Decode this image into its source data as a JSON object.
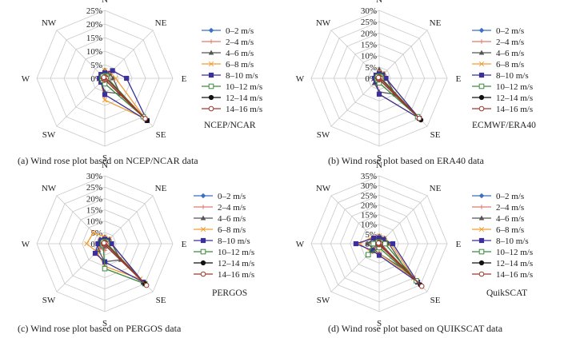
{
  "figure": {
    "legend_entries": [
      "0–2  m/s",
      "2–4  m/s",
      "4–6  m/s",
      "6–8  m/s",
      "8–10  m/s",
      "10–12  m/s",
      "12–14  m/s",
      "14–16  m/s"
    ],
    "directions": [
      "N",
      "NE",
      "E",
      "SE",
      "S",
      "SW",
      "W",
      "NW"
    ],
    "series_colors": [
      "#3a6fc4",
      "#e07a6a",
      "#555555",
      "#f39c32",
      "#3b2f9c",
      "#3d8a3d",
      "#111111",
      "#9b3b2e"
    ],
    "series_markers": [
      "diamond",
      "cross",
      "triangle",
      "x",
      "square",
      "square-open",
      "circle",
      "circle-open"
    ],
    "grid": true,
    "legend_position": "right"
  },
  "chart_data": [
    {
      "type": "radar",
      "panel_label": "NCEP/NCAR",
      "caption": "(a) Wind rose plot based on NCEP/NCAR data",
      "categories": [
        "N",
        "NE",
        "E",
        "SE",
        "S",
        "SW",
        "W",
        "NW"
      ],
      "rlim": [
        0,
        25
      ],
      "ticks": [
        "0%",
        "5%",
        "10%",
        "15%",
        "20%",
        "25%"
      ],
      "series": [
        {
          "name": "0–2  m/s",
          "values": [
            2,
            1.5,
            1,
            1,
            1.5,
            2,
            1.5,
            1.5
          ]
        },
        {
          "name": "2–4  m/s",
          "values": [
            3,
            2,
            1.5,
            1.5,
            2,
            2,
            2,
            2
          ]
        },
        {
          "name": "4–6  m/s",
          "values": [
            3,
            2.5,
            3,
            8,
            5,
            2,
            2,
            2
          ]
        },
        {
          "name": "6–8  m/s",
          "values": [
            3,
            3,
            4,
            21,
            8,
            2,
            2,
            2
          ]
        },
        {
          "name": "8–10  m/s",
          "values": [
            2,
            4,
            8,
            22,
            6,
            2,
            2,
            2
          ]
        },
        {
          "name": "10–12  m/s",
          "values": [
            1,
            1,
            1,
            20,
            2,
            1,
            1,
            1
          ]
        },
        {
          "name": "12–14  m/s",
          "values": [
            0.5,
            0.5,
            0.5,
            22,
            0.5,
            0.5,
            0.5,
            0.5
          ]
        },
        {
          "name": "14–16  m/s",
          "values": [
            0.5,
            0.5,
            0.5,
            21,
            0.5,
            0.5,
            0.5,
            0.5
          ]
        }
      ]
    },
    {
      "type": "radar",
      "panel_label": "ECMWF/ERA40",
      "caption": "(b) Wind rose plot based on ERA40 data",
      "categories": [
        "N",
        "NE",
        "E",
        "SE",
        "S",
        "SW",
        "W",
        "NW"
      ],
      "rlim": [
        0,
        30
      ],
      "ticks": [
        "0%",
        "5%",
        "10%",
        "15%",
        "20%",
        "25%",
        "30%"
      ],
      "series": [
        {
          "name": "0–2  m/s",
          "values": [
            2,
            1.5,
            1,
            1,
            1,
            1.5,
            1.5,
            1.5
          ]
        },
        {
          "name": "2–4  m/s",
          "values": [
            3,
            2,
            1.5,
            1.5,
            2,
            2,
            2,
            2
          ]
        },
        {
          "name": "4–6  m/s",
          "values": [
            4,
            3,
            3,
            10,
            6,
            3,
            2,
            2
          ]
        },
        {
          "name": "6–8  m/s",
          "values": [
            3,
            3,
            3,
            25,
            7,
            2,
            2,
            2
          ]
        },
        {
          "name": "8–10  m/s",
          "values": [
            2,
            2,
            3,
            25,
            7,
            2,
            2,
            2
          ]
        },
        {
          "name": "10–12  m/s",
          "values": [
            1,
            1,
            1,
            24,
            2,
            1,
            1,
            1
          ]
        },
        {
          "name": "12–14  m/s",
          "values": [
            0.5,
            0.5,
            0.5,
            26,
            0.5,
            0.5,
            0.5,
            0.5
          ]
        },
        {
          "name": "14–16  m/s",
          "values": [
            0.5,
            0.5,
            0.5,
            25,
            0.5,
            0.5,
            0.5,
            0.5
          ]
        }
      ]
    },
    {
      "type": "radar",
      "panel_label": "PERGOS",
      "caption": "(c) Wind rose plot based on PERGOS data",
      "categories": [
        "N",
        "NE",
        "E",
        "SE",
        "S",
        "SW",
        "W",
        "NW"
      ],
      "rlim": [
        0,
        30
      ],
      "ticks": [
        "0%",
        "5%",
        "10%",
        "15%",
        "20%",
        "25%",
        "30%"
      ],
      "series": [
        {
          "name": "0–2  m/s",
          "values": [
            2,
            1.5,
            1,
            1,
            2,
            2,
            2,
            2
          ]
        },
        {
          "name": "2–4  m/s",
          "values": [
            3,
            2,
            1.5,
            1.5,
            3,
            3,
            3,
            3
          ]
        },
        {
          "name": "4–6  m/s",
          "values": [
            3,
            3,
            3,
            10,
            8,
            4,
            3,
            3
          ]
        },
        {
          "name": "6–8  m/s",
          "values": [
            3,
            3,
            3,
            22,
            10,
            5,
            8,
            7
          ]
        },
        {
          "name": "8–10  m/s",
          "values": [
            2,
            2,
            3,
            24,
            8,
            6,
            3,
            2
          ]
        },
        {
          "name": "10–12  m/s",
          "values": [
            1,
            1,
            1,
            25,
            11,
            1,
            1,
            1
          ]
        },
        {
          "name": "12–14  m/s",
          "values": [
            0.5,
            0.5,
            0.5,
            25,
            0.5,
            0.5,
            0.5,
            0.5
          ]
        },
        {
          "name": "14–16  m/s",
          "values": [
            0.5,
            0.5,
            0.5,
            26,
            0.5,
            0.5,
            0.5,
            0.5
          ]
        }
      ]
    },
    {
      "type": "radar",
      "panel_label": "QuikSCAT",
      "caption": "(d) Wind rose plot based on QUIKSCAT data",
      "categories": [
        "N",
        "NE",
        "E",
        "SE",
        "S",
        "SW",
        "W",
        "NW"
      ],
      "rlim": [
        0,
        35
      ],
      "ticks": [
        "0%",
        "5%",
        "10%",
        "15%",
        "20%",
        "25%",
        "30%",
        "35%"
      ],
      "series": [
        {
          "name": "0–2  m/s",
          "values": [
            2,
            2,
            2,
            2,
            2,
            2,
            2,
            2
          ]
        },
        {
          "name": "2–4  m/s",
          "values": [
            3,
            3,
            3,
            3,
            3,
            3,
            4,
            3
          ]
        },
        {
          "name": "4–6  m/s",
          "values": [
            4,
            4,
            5,
            20,
            5,
            4,
            6,
            4
          ]
        },
        {
          "name": "6–8  m/s",
          "values": [
            4,
            4,
            6,
            25,
            5,
            6,
            10,
            5
          ]
        },
        {
          "name": "8–10  m/s",
          "values": [
            3,
            3,
            7,
            28,
            6,
            5,
            12,
            4
          ]
        },
        {
          "name": "10–12  m/s",
          "values": [
            1,
            1,
            3,
            27,
            2,
            8,
            3,
            1
          ]
        },
        {
          "name": "12–14  m/s",
          "values": [
            0.5,
            0.5,
            0.5,
            30,
            0.5,
            0.5,
            0.5,
            0.5
          ]
        },
        {
          "name": "14–16  m/s",
          "values": [
            0.5,
            0.5,
            0.5,
            31,
            0.5,
            0.5,
            0.5,
            0.5
          ]
        }
      ]
    }
  ]
}
